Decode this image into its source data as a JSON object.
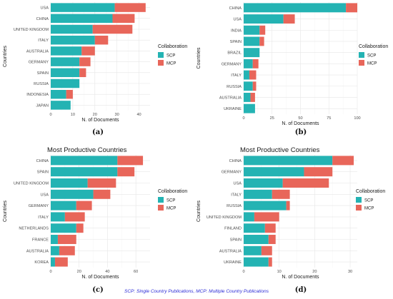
{
  "colors": {
    "scp": "#24b3b3",
    "mcp": "#e8665a",
    "grid": "#e6e6e6"
  },
  "caption": "SCP: Single Country Publications, MCP: Multiple Country Publications",
  "chart_data": [
    {
      "type": "bar",
      "orientation": "horizontal",
      "stacked": true,
      "panel_label": "(a)",
      "title": "",
      "xlabel": "N. of Documents",
      "ylabel": "Countries",
      "xlim": [
        0,
        45
      ],
      "xticks": [
        0,
        10,
        20,
        30,
        40
      ],
      "legend": {
        "title": "Collaboration",
        "entries": [
          "SCP",
          "MCP"
        ],
        "position": "right"
      },
      "categories": [
        "USA",
        "CHINA",
        "UNITED KINGDOM",
        "ITALY",
        "AUSTRALIA",
        "GERMANY",
        "SPAIN",
        "RUSSIA",
        "INDONESIA",
        "JAPAN"
      ],
      "series": [
        {
          "name": "SCP",
          "values": [
            29,
            28,
            19,
            20,
            14,
            13,
            13,
            13,
            7,
            9
          ]
        },
        {
          "name": "MCP",
          "values": [
            14,
            10,
            18,
            6,
            6,
            5,
            3,
            0,
            3,
            0
          ]
        }
      ]
    },
    {
      "type": "bar",
      "orientation": "horizontal",
      "stacked": true,
      "panel_label": "(b)",
      "title": "",
      "xlabel": "N. of Documents",
      "ylabel": "Countries",
      "xlim": [
        0,
        100
      ],
      "xticks": [
        0,
        25,
        50,
        75,
        100
      ],
      "legend": {
        "title": "Collaboration",
        "entries": [
          "SCP",
          "MCP"
        ],
        "position": "right"
      },
      "categories": [
        "CHINA",
        "USA",
        "INDIA",
        "SPAIN",
        "BRAZIL",
        "GERMANY",
        "ITALY",
        "RUSSIA",
        "AUSTRALIA",
        "UKRAINE"
      ],
      "series": [
        {
          "name": "SCP",
          "values": [
            90,
            35,
            14,
            14,
            14,
            8,
            5,
            8,
            6,
            10
          ]
        },
        {
          "name": "MCP",
          "values": [
            10,
            10,
            5,
            4,
            0,
            5,
            6,
            3,
            4,
            0
          ]
        }
      ]
    },
    {
      "type": "bar",
      "orientation": "horizontal",
      "stacked": true,
      "panel_label": "(c)",
      "title": "Most Productive Countries",
      "xlabel": "N. of Documents",
      "ylabel": "Countries",
      "xlim": [
        0,
        70
      ],
      "xticks": [
        0,
        20,
        40,
        60
      ],
      "legend": {
        "title": "Collaboration",
        "entries": [
          "SCP",
          "MCP"
        ],
        "position": "right"
      },
      "categories": [
        "CHINA",
        "SPAIN",
        "UNITED KINGDOM",
        "USA",
        "GERMANY",
        "ITALY",
        "NETHERLANDS",
        "FRANCE",
        "AUSTRALIA",
        "KOREA"
      ],
      "series": [
        {
          "name": "SCP",
          "values": [
            47,
            47,
            26,
            30,
            18,
            10,
            18,
            5,
            6,
            3
          ]
        },
        {
          "name": "MCP",
          "values": [
            18,
            12,
            20,
            12,
            11,
            14,
            5,
            13,
            11,
            9
          ]
        }
      ]
    },
    {
      "type": "bar",
      "orientation": "horizontal",
      "stacked": true,
      "panel_label": "(d)",
      "title": "Most Productive Countries",
      "xlabel": "N. of Documents",
      "ylabel": "Countries",
      "xlim": [
        0,
        32
      ],
      "xticks": [
        0,
        10,
        20,
        30
      ],
      "legend": {
        "title": "Collaboration",
        "entries": [
          "SCP",
          "MCP"
        ],
        "position": "right"
      },
      "categories": [
        "CHINA",
        "GERMANY",
        "USA",
        "ITALY",
        "RUSSIA",
        "UNITED KINGDOM",
        "FINLAND",
        "SPAIN",
        "AUSTRALIA",
        "UKRAINE"
      ],
      "series": [
        {
          "name": "SCP",
          "values": [
            25,
            17,
            11,
            8,
            12,
            3,
            6,
            7,
            5,
            7
          ]
        },
        {
          "name": "MCP",
          "values": [
            6,
            8,
            13,
            5,
            1,
            7,
            3,
            2,
            3,
            1
          ]
        }
      ]
    }
  ]
}
